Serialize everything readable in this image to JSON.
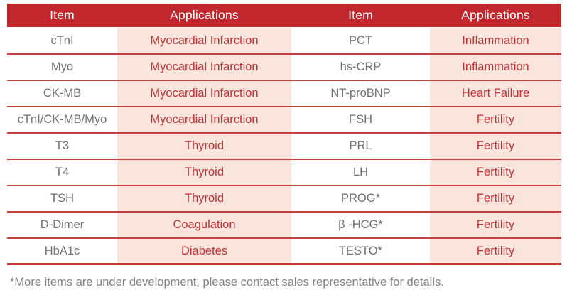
{
  "table": {
    "columns": [
      "Item",
      "Applications",
      "Item",
      "Applications"
    ],
    "rows": [
      [
        "cTnI",
        "Myocardial Infarction",
        "PCT",
        "Inflammation"
      ],
      [
        "Myo",
        "Myocardial Infarction",
        "hs-CRP",
        "Inflammation"
      ],
      [
        "CK-MB",
        "Myocardial Infarction",
        "NT-proBNP",
        "Heart Failure"
      ],
      [
        "cTnI/CK-MB/Myo",
        "Myocardial Infarction",
        "FSH",
        "Fertility"
      ],
      [
        "T3",
        "Thyroid",
        "PRL",
        "Fertility"
      ],
      [
        "T4",
        "Thyroid",
        "LH",
        "Fertility"
      ],
      [
        "TSH",
        "Thyroid",
        "PROG*",
        "Fertility"
      ],
      [
        "D-Dimer",
        "Coagulation",
        "β -HCG*",
        "Fertility"
      ],
      [
        "HbA1c",
        "Diabetes",
        "TESTO*",
        "Fertility"
      ]
    ]
  },
  "footnote": "*More items are under development, please contact sales representative for details.",
  "colors": {
    "header_bg": "#c2272d",
    "header_text": "#ffffff",
    "app_cell_bg": "#f9e5dc",
    "app_text": "#bf3238",
    "item_text": "#717171",
    "separator": "#c5403d",
    "footnote_text": "#828282"
  }
}
